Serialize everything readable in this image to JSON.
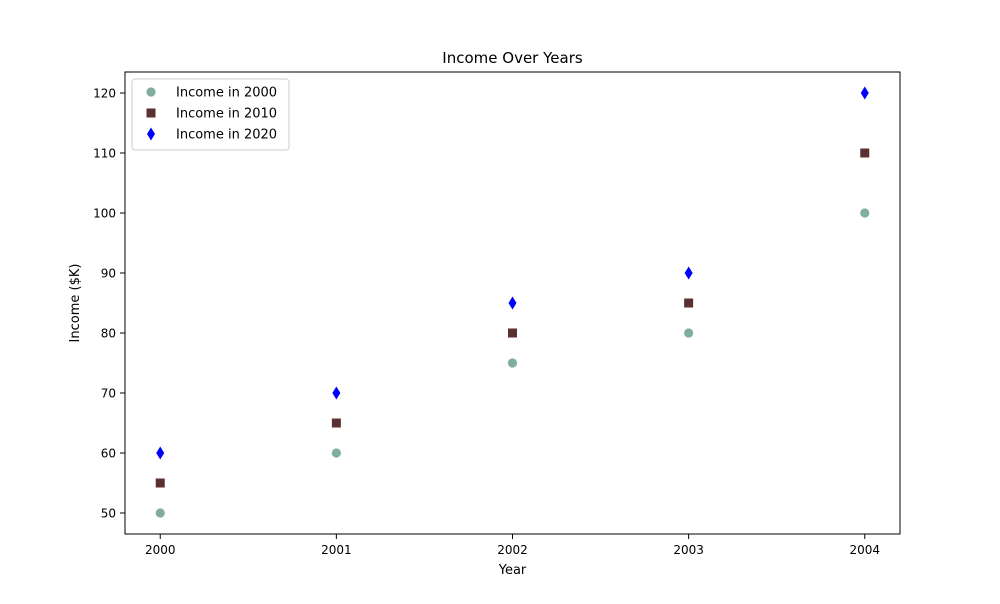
{
  "chart_data": {
    "type": "scatter",
    "title": "Income Over Years",
    "xlabel": "Year",
    "ylabel": "Income ($K)",
    "x": [
      2000,
      2001,
      2002,
      2003,
      2004
    ],
    "xlim": [
      1999.8,
      2004.2
    ],
    "ylim": [
      46.5,
      123.5
    ],
    "xticks": [
      2000,
      2001,
      2002,
      2003,
      2004
    ],
    "yticks": [
      50,
      60,
      70,
      80,
      90,
      100,
      110,
      120
    ],
    "grid": false,
    "legend_position": "top-left",
    "series": [
      {
        "name": "Income in 2000",
        "marker": "circle",
        "color": "#7fae9c",
        "values": [
          50,
          60,
          75,
          80,
          100
        ]
      },
      {
        "name": "Income in 2010",
        "marker": "square",
        "color": "#5a3030",
        "values": [
          55,
          65,
          80,
          85,
          110
        ]
      },
      {
        "name": "Income in 2020",
        "marker": "diamond",
        "color": "#0000ff",
        "values": [
          60,
          70,
          85,
          90,
          120
        ]
      }
    ]
  }
}
